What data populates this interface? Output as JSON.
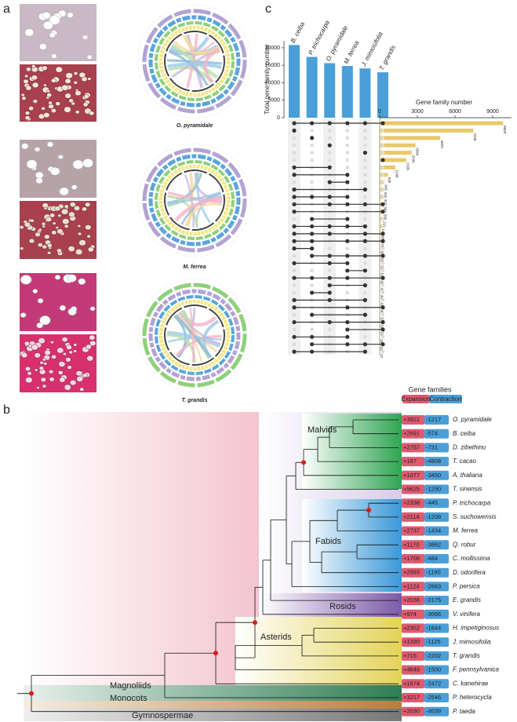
{
  "panel_labels": [
    "a",
    "b",
    "c"
  ],
  "circos_captions": [
    "O. pyramidale",
    "M. ferrea",
    "T. grandis"
  ],
  "chart_data": [
    {
      "type": "bar",
      "ylabel": "Total gene family number",
      "categories": [
        "B. ceiba",
        "P. trichocarpa",
        "O. pyramidale",
        "M. ferrea",
        "J. mimosifolia",
        "T. grandis"
      ],
      "values": [
        20800,
        17400,
        15600,
        14800,
        14100,
        13000
      ],
      "color": "#4a9fd8",
      "ylim": [
        0,
        22000
      ],
      "yticks": [
        0,
        5000,
        10000,
        15000,
        20000
      ]
    },
    {
      "type": "barh",
      "xlabel": "Gene family number",
      "values": [
        9828,
        7440,
        4829,
        2846,
        2546,
        2106,
        1246,
        645,
        343,
        315,
        312,
        302,
        286,
        216,
        143,
        98,
        75,
        58,
        55,
        53,
        51,
        49,
        47,
        44,
        41,
        40,
        33,
        31,
        29,
        26,
        24,
        22
      ],
      "sets": [
        [
          0,
          1,
          2,
          3,
          4,
          5
        ],
        [
          0
        ],
        [
          1
        ],
        [
          2
        ],
        [
          4
        ],
        [
          5
        ],
        [
          0,
          2
        ],
        [
          0,
          3
        ],
        [
          2,
          3
        ],
        [
          0,
          4
        ],
        [
          0,
          1,
          2,
          3
        ],
        [
          0,
          2,
          3,
          4,
          5
        ],
        [
          0,
          5
        ],
        [
          1,
          3
        ],
        [
          0,
          1,
          2,
          3,
          4
        ],
        [
          0,
          1,
          2,
          4,
          5
        ],
        [
          0,
          1,
          3,
          4,
          5
        ],
        [
          0,
          1
        ],
        [
          1,
          2,
          3,
          4,
          5
        ],
        [
          0,
          2,
          3
        ],
        [
          3,
          4
        ],
        [
          0,
          1,
          2,
          3,
          5
        ],
        [
          2,
          4
        ],
        [
          1,
          2
        ],
        [
          0,
          2,
          4
        ],
        [
          0,
          3,
          5
        ],
        [
          1,
          4
        ],
        [
          0,
          2,
          3,
          5
        ],
        [
          3,
          5
        ],
        [
          0,
          1,
          3
        ],
        [
          1,
          3,
          4,
          5
        ],
        [
          0,
          1,
          4
        ]
      ],
      "color": "#e8c86a",
      "xlim": [
        0,
        10500
      ],
      "xticks": [
        0,
        3000,
        6000,
        9000
      ]
    }
  ],
  "tree": {
    "header": "Gene families",
    "expansion": "Expansion",
    "contraction": "Contraction",
    "highlight_color": "#e0202a",
    "clades": [
      "Malvids",
      "Fabids",
      "Rosids",
      "Asterids",
      "Magnoliids",
      "Monocots",
      "Gymnospermae"
    ],
    "species": [
      {
        "name": "O. pyramidale",
        "expansion": "+3921",
        "contraction": "-1217",
        "highlight": true
      },
      {
        "name": "B. ceiba",
        "expansion": "+2691",
        "contraction": "-574",
        "highlight": false
      },
      {
        "name": "D. zibethinu",
        "expansion": "+2757",
        "contraction": "-731",
        "highlight": false
      },
      {
        "name": "T. cacao",
        "expansion": "+187",
        "contraction": "-4808",
        "highlight": false
      },
      {
        "name": "A. thaliana",
        "expansion": "+1077",
        "contraction": "-3450",
        "highlight": false
      },
      {
        "name": "T. sinensis",
        "expansion": "+5625",
        "contraction": "-1250",
        "highlight": false
      },
      {
        "name": "P. trichocarpa",
        "expansion": "+2338",
        "contraction": "-445",
        "highlight": false
      },
      {
        "name": "S. suchowensis",
        "expansion": "+2114",
        "contraction": "-1208",
        "highlight": false
      },
      {
        "name": "M. ferrea",
        "expansion": "+2737",
        "contraction": "-1434",
        "highlight": true
      },
      {
        "name": "Q. robur",
        "expansion": "+1170",
        "contraction": "-3862",
        "highlight": false
      },
      {
        "name": "C. mollissima",
        "expansion": "+1708",
        "contraction": "-484",
        "highlight": false
      },
      {
        "name": "D. odorifera",
        "expansion": "+2993",
        "contraction": "-1190",
        "highlight": false
      },
      {
        "name": "P. persica",
        "expansion": "+1124",
        "contraction": "-2683",
        "highlight": false
      },
      {
        "name": "E. grandis",
        "expansion": "+2036",
        "contraction": "-2175",
        "highlight": false
      },
      {
        "name": "V. vinifera",
        "expansion": "+974",
        "contraction": "-3066",
        "highlight": false
      },
      {
        "name": "H. impetiginosus",
        "expansion": "+2352",
        "contraction": "-1844",
        "highlight": false
      },
      {
        "name": "J. mimosifolia",
        "expansion": "+1330",
        "contraction": "-1125",
        "highlight": false
      },
      {
        "name": "T. grandis",
        "expansion": "+715",
        "contraction": "-2202",
        "highlight": true
      },
      {
        "name": "F. pennsylvanica",
        "expansion": "+4648",
        "contraction": "-1500",
        "highlight": false
      },
      {
        "name": "C. kanehirae",
        "expansion": "+1674",
        "contraction": "-2472",
        "highlight": false
      },
      {
        "name": "P. heterocycla",
        "expansion": "+3217",
        "contraction": "-2546",
        "highlight": false
      },
      {
        "name": "P. taeda",
        "expansion": "+2030",
        "contraction": "-4039",
        "highlight": false
      }
    ]
  }
}
